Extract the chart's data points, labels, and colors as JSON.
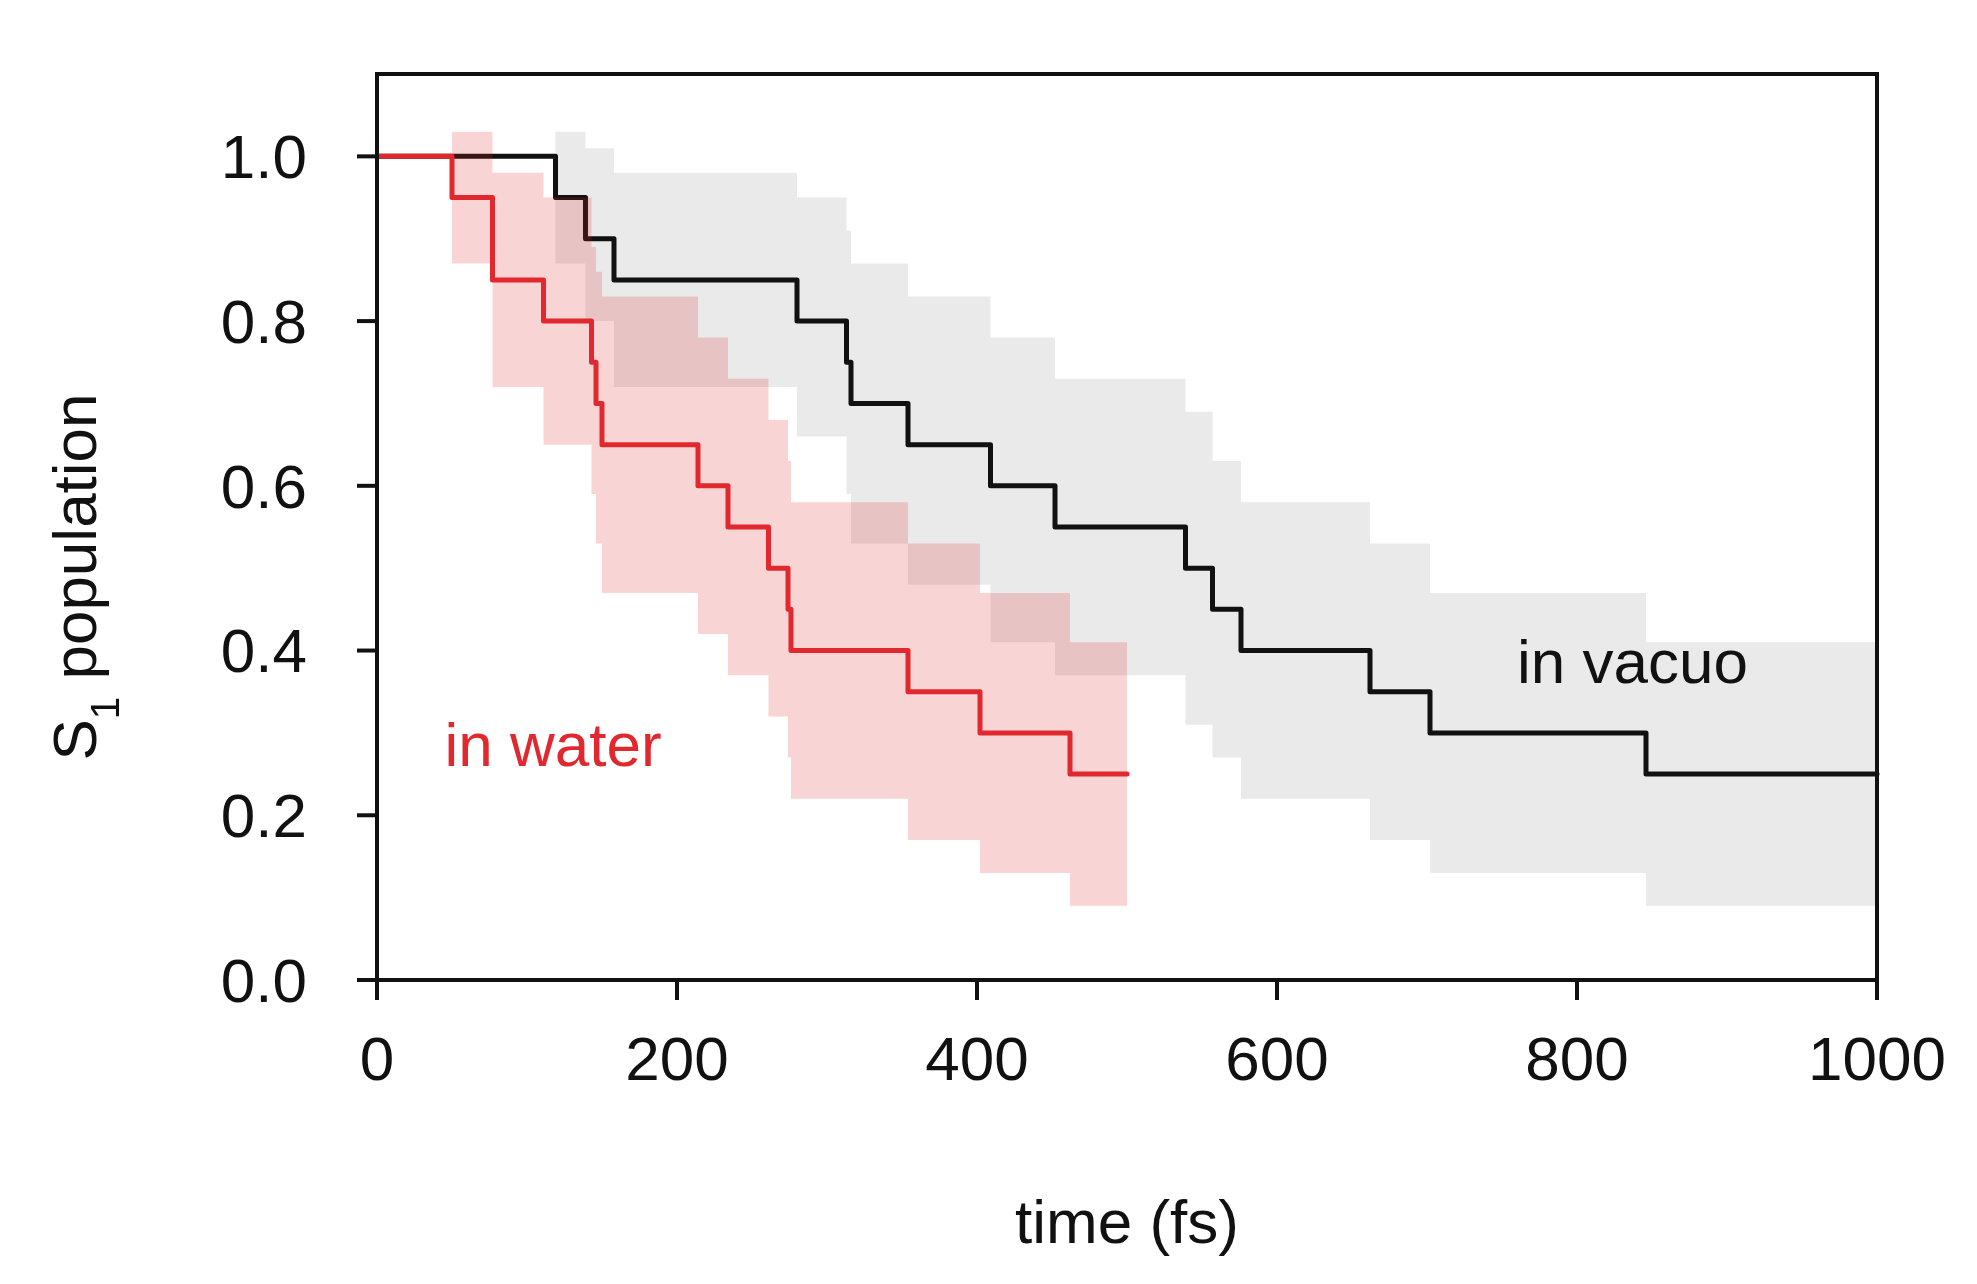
{
  "chart_data": {
    "type": "step",
    "xlabel": "time (fs)",
    "ylabel": "S$_{1}$ population",
    "xlim": [
      0,
      1000
    ],
    "ylim": [
      0,
      1.1
    ],
    "xticks": [
      0,
      200,
      400,
      600,
      800,
      1000
    ],
    "yticks": [
      {
        "value": 0,
        "label": "0.0"
      },
      {
        "value": 0.2,
        "label": "0.2"
      },
      {
        "value": 0.4,
        "label": "0.4"
      },
      {
        "value": 0.6,
        "label": "0.6"
      },
      {
        "value": 0.8,
        "label": "0.8"
      },
      {
        "value": 1,
        "label": "1.0"
      }
    ],
    "grid": false,
    "marker": "none",
    "line_style": "solid",
    "series": [
      {
        "name": "in vacuo",
        "color": "#111111",
        "x": [
          0,
          119,
          139,
          158,
          280,
          313,
          316,
          354,
          409,
          452,
          539,
          557,
          576,
          662,
          702,
          846,
          1000
        ],
        "values": [
          1,
          0.95,
          0.9,
          0.85,
          0.8,
          0.75,
          0.7,
          0.65,
          0.6,
          0.55,
          0.5,
          0.45,
          0.4,
          0.35,
          0.3,
          0.25,
          0.25
        ],
        "lower": [
          1,
          0.87,
          0.8,
          0.72,
          0.66,
          0.59,
          0.53,
          0.48,
          0.41,
          0.37,
          0.31,
          0.27,
          0.22,
          0.17,
          0.13,
          0.09,
          0.09
        ],
        "upper": [
          1,
          1.03,
          1.01,
          0.98,
          0.95,
          0.91,
          0.87,
          0.83,
          0.78,
          0.73,
          0.69,
          0.63,
          0.58,
          0.53,
          0.47,
          0.41,
          0.41
        ]
      },
      {
        "name": "in water",
        "color": "#e0282e",
        "x": [
          0,
          50,
          77,
          111,
          143,
          146,
          150,
          214,
          234,
          261,
          274,
          276,
          354,
          402,
          462,
          500
        ],
        "values": [
          1,
          0.95,
          0.85,
          0.8,
          0.75,
          0.7,
          0.65,
          0.6,
          0.55,
          0.5,
          0.45,
          0.4,
          0.35,
          0.3,
          0.25,
          0.25
        ],
        "lower": [
          1,
          0.87,
          0.72,
          0.65,
          0.59,
          0.53,
          0.47,
          0.42,
          0.37,
          0.32,
          0.27,
          0.22,
          0.17,
          0.13,
          0.09,
          0.09
        ],
        "upper": [
          1,
          1.03,
          0.98,
          0.95,
          0.89,
          0.86,
          0.83,
          0.78,
          0.73,
          0.68,
          0.63,
          0.58,
          0.53,
          0.47,
          0.41,
          0.41
        ]
      }
    ]
  }
}
